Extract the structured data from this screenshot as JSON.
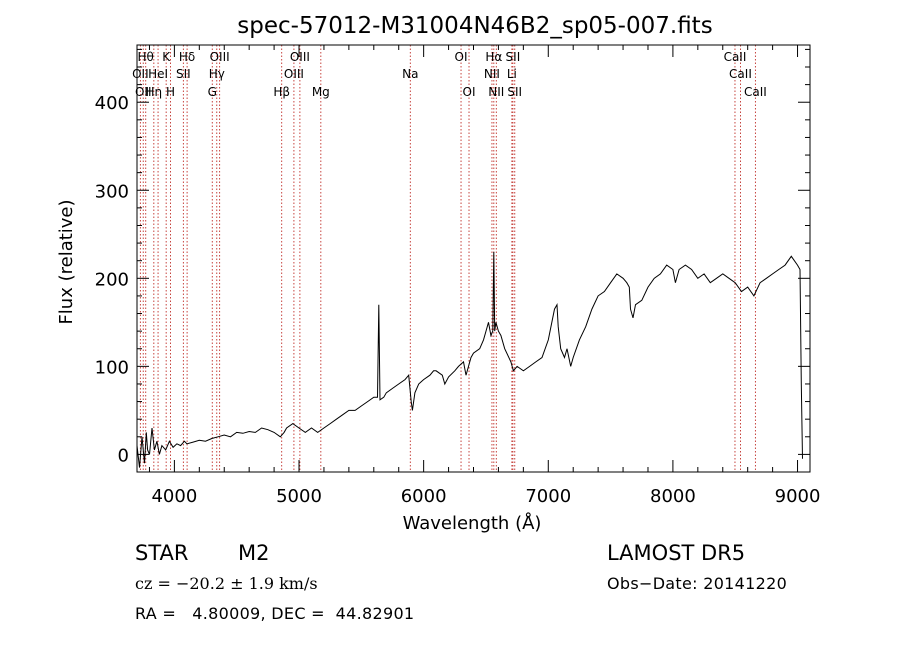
{
  "chart_data": {
    "type": "line",
    "title": "spec-57012-M31004N46B2_sp05-007.fits",
    "xlabel": "Wavelength (Å)",
    "ylabel": "Flux (relative)",
    "xlim": [
      3700,
      9100
    ],
    "ylim": [
      -20,
      465
    ],
    "x_ticks": [
      4000,
      5000,
      6000,
      7000,
      8000,
      9000
    ],
    "y_ticks": [
      0,
      100,
      200,
      300,
      400
    ],
    "grid": false,
    "series": [
      {
        "points": [
          [
            3700,
            10
          ],
          [
            3720,
            -15
          ],
          [
            3740,
            20
          ],
          [
            3760,
            -10
          ],
          [
            3775,
            25
          ],
          [
            3785,
            5
          ],
          [
            3800,
            0
          ],
          [
            3820,
            30
          ],
          [
            3840,
            5
          ],
          [
            3860,
            15
          ],
          [
            3880,
            0
          ],
          [
            3900,
            10
          ],
          [
            3930,
            5
          ],
          [
            3960,
            15
          ],
          [
            3990,
            8
          ],
          [
            4020,
            12
          ],
          [
            4050,
            10
          ],
          [
            4080,
            15
          ],
          [
            4100,
            12
          ],
          [
            4150,
            14
          ],
          [
            4200,
            16
          ],
          [
            4250,
            15
          ],
          [
            4300,
            18
          ],
          [
            4350,
            20
          ],
          [
            4400,
            22
          ],
          [
            4450,
            20
          ],
          [
            4500,
            25
          ],
          [
            4550,
            24
          ],
          [
            4600,
            26
          ],
          [
            4650,
            25
          ],
          [
            4700,
            30
          ],
          [
            4750,
            28
          ],
          [
            4800,
            25
          ],
          [
            4850,
            20
          ],
          [
            4880,
            25
          ],
          [
            4900,
            30
          ],
          [
            4950,
            35
          ],
          [
            5000,
            30
          ],
          [
            5050,
            25
          ],
          [
            5100,
            30
          ],
          [
            5150,
            25
          ],
          [
            5200,
            30
          ],
          [
            5250,
            35
          ],
          [
            5300,
            40
          ],
          [
            5350,
            45
          ],
          [
            5400,
            50
          ],
          [
            5450,
            50
          ],
          [
            5500,
            55
          ],
          [
            5550,
            60
          ],
          [
            5600,
            65
          ],
          [
            5630,
            65
          ],
          [
            5640,
            170
          ],
          [
            5650,
            62
          ],
          [
            5680,
            65
          ],
          [
            5700,
            70
          ],
          [
            5750,
            75
          ],
          [
            5800,
            80
          ],
          [
            5850,
            85
          ],
          [
            5880,
            90
          ],
          [
            5900,
            60
          ],
          [
            5910,
            50
          ],
          [
            5930,
            70
          ],
          [
            5960,
            80
          ],
          [
            6000,
            85
          ],
          [
            6050,
            90
          ],
          [
            6080,
            95
          ],
          [
            6100,
            95
          ],
          [
            6150,
            90
          ],
          [
            6170,
            80
          ],
          [
            6200,
            88
          ],
          [
            6250,
            95
          ],
          [
            6280,
            100
          ],
          [
            6320,
            105
          ],
          [
            6340,
            90
          ],
          [
            6380,
            110
          ],
          [
            6400,
            115
          ],
          [
            6450,
            120
          ],
          [
            6480,
            130
          ],
          [
            6500,
            140
          ],
          [
            6520,
            150
          ],
          [
            6540,
            135
          ],
          [
            6555,
            140
          ],
          [
            6563,
            230
          ],
          [
            6570,
            140
          ],
          [
            6580,
            150
          ],
          [
            6600,
            140
          ],
          [
            6620,
            135
          ],
          [
            6650,
            120
          ],
          [
            6700,
            105
          ],
          [
            6720,
            95
          ],
          [
            6750,
            100
          ],
          [
            6800,
            95
          ],
          [
            6850,
            100
          ],
          [
            6900,
            105
          ],
          [
            6950,
            110
          ],
          [
            7000,
            130
          ],
          [
            7050,
            165
          ],
          [
            7070,
            170
          ],
          [
            7080,
            145
          ],
          [
            7100,
            120
          ],
          [
            7130,
            110
          ],
          [
            7150,
            120
          ],
          [
            7180,
            100
          ],
          [
            7200,
            110
          ],
          [
            7250,
            130
          ],
          [
            7300,
            145
          ],
          [
            7350,
            165
          ],
          [
            7400,
            180
          ],
          [
            7450,
            185
          ],
          [
            7500,
            195
          ],
          [
            7550,
            205
          ],
          [
            7600,
            200
          ],
          [
            7630,
            195
          ],
          [
            7650,
            190
          ],
          [
            7660,
            165
          ],
          [
            7680,
            155
          ],
          [
            7700,
            170
          ],
          [
            7750,
            175
          ],
          [
            7800,
            190
          ],
          [
            7850,
            200
          ],
          [
            7900,
            205
          ],
          [
            7950,
            215
          ],
          [
            8000,
            210
          ],
          [
            8020,
            195
          ],
          [
            8050,
            210
          ],
          [
            8100,
            215
          ],
          [
            8150,
            210
          ],
          [
            8200,
            200
          ],
          [
            8250,
            205
          ],
          [
            8300,
            195
          ],
          [
            8350,
            200
          ],
          [
            8400,
            205
          ],
          [
            8450,
            200
          ],
          [
            8500,
            195
          ],
          [
            8550,
            185
          ],
          [
            8600,
            190
          ],
          [
            8650,
            180
          ],
          [
            8700,
            195
          ],
          [
            8750,
            200
          ],
          [
            8800,
            205
          ],
          [
            8850,
            210
          ],
          [
            8900,
            215
          ],
          [
            8950,
            225
          ],
          [
            9000,
            215
          ],
          [
            9020,
            210
          ],
          [
            9030,
            80
          ],
          [
            9040,
            -5
          ]
        ]
      }
    ],
    "line_marks": [
      {
        "wavelength": 3727,
        "labels": [
          "OII"
        ],
        "row": 2
      },
      {
        "wavelength": 3750,
        "labels": [
          "OII"
        ],
        "row": 3
      },
      {
        "wavelength": 3770,
        "labels": [
          "Hθ"
        ],
        "row": 1
      },
      {
        "wavelength": 3835,
        "labels": [
          "Hη"
        ],
        "row": 3
      },
      {
        "wavelength": 3869,
        "labels": [
          "HeI"
        ],
        "row": 2
      },
      {
        "wavelength": 3934,
        "labels": [
          "K"
        ],
        "row": 1
      },
      {
        "wavelength": 3969,
        "labels": [
          "H"
        ],
        "row": 3
      },
      {
        "wavelength": 4072,
        "labels": [
          "SII"
        ],
        "row": 2
      },
      {
        "wavelength": 4102,
        "labels": [
          "Hδ"
        ],
        "row": 1
      },
      {
        "wavelength": 4304,
        "labels": [
          "G"
        ],
        "row": 3
      },
      {
        "wavelength": 4340,
        "labels": [
          "Hγ"
        ],
        "row": 2
      },
      {
        "wavelength": 4363,
        "labels": [
          "OIII"
        ],
        "row": 1
      },
      {
        "wavelength": 4861,
        "labels": [
          "Hβ"
        ],
        "row": 3
      },
      {
        "wavelength": 4959,
        "labels": [
          "OIII"
        ],
        "row": 2
      },
      {
        "wavelength": 5007,
        "labels": [
          "OIII"
        ],
        "row": 1
      },
      {
        "wavelength": 5175,
        "labels": [
          "Mg"
        ],
        "row": 3
      },
      {
        "wavelength": 5893,
        "labels": [
          "Na"
        ],
        "row": 2
      },
      {
        "wavelength": 6300,
        "labels": [
          "OI"
        ],
        "row": 1
      },
      {
        "wavelength": 6364,
        "labels": [
          "OI"
        ],
        "row": 3
      },
      {
        "wavelength": 6548,
        "labels": [
          "NII"
        ],
        "row": 2
      },
      {
        "wavelength": 6563,
        "labels": [
          "Hα"
        ],
        "row": 1
      },
      {
        "wavelength": 6583,
        "labels": [
          "NII"
        ],
        "row": 3
      },
      {
        "wavelength": 6708,
        "labels": [
          "Li"
        ],
        "row": 2
      },
      {
        "wavelength": 6716,
        "labels": [
          "SII"
        ],
        "row": 1
      },
      {
        "wavelength": 6731,
        "labels": [
          "SII"
        ],
        "row": 3
      },
      {
        "wavelength": 8498,
        "labels": [
          "CaII"
        ],
        "row": 1
      },
      {
        "wavelength": 8542,
        "labels": [
          "CaII"
        ],
        "row": 2
      },
      {
        "wavelength": 8662,
        "labels": [
          "CaII"
        ],
        "row": 3
      }
    ]
  },
  "footer": {
    "object_class": "STAR",
    "subclass": "M2",
    "survey": "LAMOST  DR5",
    "cz": "cz = −20.2 ± 1.9 km/s",
    "obs_date": "Obs−Date: 20141220",
    "coords": "RA =   4.80009, DEC =  44.82901"
  },
  "colors": {
    "spectrum": "#000000",
    "line_marks": "#c0302a",
    "axes": "#000000"
  }
}
